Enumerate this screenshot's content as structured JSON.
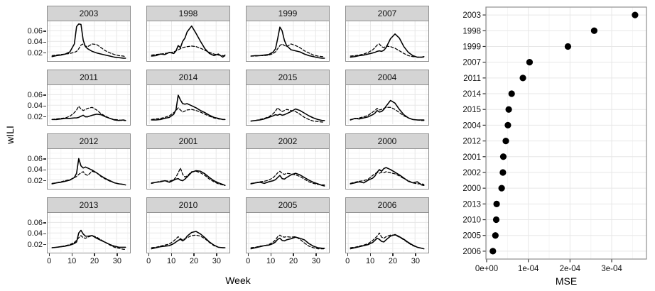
{
  "figure": {
    "left": {
      "ylabel": "wILI",
      "xlabel": "Week",
      "y_tick_labels": [
        "0.06",
        "0.04",
        "0.02"
      ],
      "x_tick_labels": [
        "0",
        "10",
        "20",
        "30"
      ]
    },
    "right": {
      "xlabel": "MSE",
      "x_tick_labels": [
        "0e+00",
        "1e-04",
        "2e-04",
        "3e-04"
      ]
    }
  },
  "colors": {
    "line": "#000000",
    "point": "#000000",
    "text": "#111111",
    "strip_fill": "#d4d4d4",
    "strip_border": "#8f8f8f",
    "panel_border": "#8f8f8f",
    "grid_major": "#e7e7e7",
    "grid_minor": "#f4f4f4"
  },
  "chart_data": [
    {
      "type": "line",
      "title": "",
      "xlabel": "Week",
      "ylabel": "wILI",
      "facet_variable": "year",
      "grid": true,
      "xlim": [
        -1,
        36
      ],
      "ylim": [
        0.004,
        0.078
      ],
      "x_ticks": [
        0,
        10,
        20,
        30
      ],
      "x_minor": [
        5,
        15,
        25,
        35
      ],
      "y_ticks": [
        0.02,
        0.04,
        0.06
      ],
      "y_minor": [
        0.01,
        0.03,
        0.05,
        0.07
      ],
      "x": [
        1,
        3,
        5,
        7,
        9,
        11,
        12,
        13,
        14,
        15,
        16,
        17,
        19,
        21,
        23,
        25,
        27,
        29,
        31,
        33,
        34
      ],
      "series_names": [
        "solid",
        "dashed"
      ],
      "facets": [
        {
          "label": "2003",
          "solid": [
            0.011,
            0.013,
            0.014,
            0.016,
            0.02,
            0.035,
            0.068,
            0.073,
            0.072,
            0.042,
            0.03,
            0.026,
            0.021,
            0.018,
            0.016,
            0.014,
            0.012,
            0.01,
            0.009,
            0.008,
            0.008
          ],
          "dashed": [
            0.013,
            0.014,
            0.015,
            0.016,
            0.017,
            0.019,
            0.021,
            0.026,
            0.033,
            0.035,
            0.031,
            0.03,
            0.035,
            0.034,
            0.028,
            0.022,
            0.018,
            0.015,
            0.013,
            0.012,
            0.011
          ]
        },
        {
          "label": "1998",
          "solid": [
            0.012,
            0.013,
            0.016,
            0.015,
            0.019,
            0.017,
            0.022,
            0.032,
            0.028,
            0.04,
            0.046,
            0.058,
            0.069,
            0.055,
            0.04,
            0.026,
            0.017,
            0.013,
            0.016,
            0.01,
            0.014
          ],
          "dashed": [
            0.014,
            0.015,
            0.016,
            0.017,
            0.018,
            0.02,
            0.022,
            0.024,
            0.026,
            0.028,
            0.029,
            0.03,
            0.031,
            0.03,
            0.027,
            0.023,
            0.019,
            0.016,
            0.014,
            0.013,
            0.012
          ]
        },
        {
          "label": "1999",
          "solid": [
            0.012,
            0.013,
            0.013,
            0.014,
            0.015,
            0.02,
            0.026,
            0.045,
            0.067,
            0.06,
            0.042,
            0.032,
            0.024,
            0.022,
            0.02,
            0.016,
            0.013,
            0.011,
            0.009,
            0.008,
            0.008
          ],
          "dashed": [
            0.012,
            0.012,
            0.013,
            0.013,
            0.014,
            0.017,
            0.02,
            0.026,
            0.032,
            0.035,
            0.032,
            0.03,
            0.035,
            0.032,
            0.028,
            0.022,
            0.018,
            0.014,
            0.012,
            0.011,
            0.011
          ]
        },
        {
          "label": "2007",
          "solid": [
            0.01,
            0.011,
            0.013,
            0.014,
            0.016,
            0.018,
            0.019,
            0.021,
            0.022,
            0.021,
            0.023,
            0.028,
            0.045,
            0.054,
            0.046,
            0.03,
            0.019,
            0.013,
            0.01,
            0.01,
            0.011
          ],
          "dashed": [
            0.012,
            0.013,
            0.014,
            0.016,
            0.019,
            0.024,
            0.028,
            0.033,
            0.035,
            0.03,
            0.028,
            0.031,
            0.03,
            0.027,
            0.022,
            0.017,
            0.013,
            0.011,
            0.01,
            0.01,
            0.01
          ]
        },
        {
          "label": "2011",
          "solid": [
            0.013,
            0.013,
            0.014,
            0.015,
            0.015,
            0.016,
            0.016,
            0.017,
            0.019,
            0.021,
            0.018,
            0.018,
            0.021,
            0.023,
            0.022,
            0.018,
            0.015,
            0.012,
            0.011,
            0.012,
            0.011
          ],
          "dashed": [
            0.013,
            0.014,
            0.015,
            0.016,
            0.019,
            0.026,
            0.031,
            0.038,
            0.033,
            0.03,
            0.032,
            0.034,
            0.036,
            0.031,
            0.024,
            0.019,
            0.015,
            0.013,
            0.012,
            0.011,
            0.011
          ]
        },
        {
          "label": "2014",
          "solid": [
            0.012,
            0.012,
            0.013,
            0.015,
            0.017,
            0.023,
            0.032,
            0.059,
            0.05,
            0.043,
            0.042,
            0.043,
            0.039,
            0.035,
            0.03,
            0.026,
            0.021,
            0.017,
            0.015,
            0.013,
            0.013
          ],
          "dashed": [
            0.013,
            0.014,
            0.015,
            0.017,
            0.02,
            0.026,
            0.03,
            0.035,
            0.031,
            0.027,
            0.029,
            0.031,
            0.032,
            0.03,
            0.027,
            0.023,
            0.019,
            0.016,
            0.014,
            0.013,
            0.013
          ]
        },
        {
          "label": "2015",
          "solid": [
            0.01,
            0.011,
            0.012,
            0.014,
            0.017,
            0.02,
            0.022,
            0.021,
            0.023,
            0.021,
            0.022,
            0.024,
            0.028,
            0.033,
            0.03,
            0.025,
            0.02,
            0.016,
            0.013,
            0.011,
            0.011
          ],
          "dashed": [
            0.01,
            0.011,
            0.013,
            0.015,
            0.018,
            0.024,
            0.029,
            0.035,
            0.031,
            0.028,
            0.03,
            0.032,
            0.03,
            0.028,
            0.023,
            0.017,
            0.013,
            0.01,
            0.009,
            0.008,
            0.008
          ]
        },
        {
          "label": "2004",
          "solid": [
            0.012,
            0.015,
            0.014,
            0.016,
            0.018,
            0.022,
            0.025,
            0.03,
            0.027,
            0.028,
            0.032,
            0.038,
            0.049,
            0.044,
            0.032,
            0.022,
            0.016,
            0.013,
            0.012,
            0.012,
            0.012
          ],
          "dashed": [
            0.013,
            0.014,
            0.016,
            0.018,
            0.021,
            0.027,
            0.03,
            0.034,
            0.031,
            0.032,
            0.034,
            0.036,
            0.036,
            0.032,
            0.026,
            0.02,
            0.016,
            0.013,
            0.012,
            0.011,
            0.011
          ]
        },
        {
          "label": "2012",
          "solid": [
            0.012,
            0.014,
            0.015,
            0.017,
            0.019,
            0.024,
            0.032,
            0.06,
            0.046,
            0.042,
            0.044,
            0.042,
            0.038,
            0.033,
            0.027,
            0.022,
            0.018,
            0.014,
            0.012,
            0.011,
            0.01
          ],
          "dashed": [
            0.013,
            0.014,
            0.016,
            0.018,
            0.02,
            0.024,
            0.026,
            0.03,
            0.033,
            0.035,
            0.03,
            0.028,
            0.036,
            0.033,
            0.026,
            0.021,
            0.017,
            0.014,
            0.012,
            0.011,
            0.01
          ]
        },
        {
          "label": "2001",
          "solid": [
            0.013,
            0.015,
            0.016,
            0.018,
            0.015,
            0.019,
            0.021,
            0.022,
            0.019,
            0.018,
            0.021,
            0.025,
            0.034,
            0.037,
            0.036,
            0.031,
            0.024,
            0.018,
            0.014,
            0.011,
            0.009
          ],
          "dashed": [
            0.014,
            0.015,
            0.017,
            0.018,
            0.017,
            0.02,
            0.025,
            0.033,
            0.042,
            0.03,
            0.025,
            0.027,
            0.035,
            0.036,
            0.033,
            0.028,
            0.021,
            0.016,
            0.012,
            0.01,
            0.009
          ]
        },
        {
          "label": "2002",
          "solid": [
            0.012,
            0.014,
            0.015,
            0.013,
            0.016,
            0.018,
            0.02,
            0.024,
            0.028,
            0.022,
            0.021,
            0.024,
            0.029,
            0.032,
            0.029,
            0.024,
            0.019,
            0.015,
            0.012,
            0.009,
            0.008
          ],
          "dashed": [
            0.013,
            0.014,
            0.016,
            0.017,
            0.019,
            0.024,
            0.028,
            0.033,
            0.036,
            0.032,
            0.03,
            0.032,
            0.031,
            0.029,
            0.026,
            0.021,
            0.016,
            0.013,
            0.011,
            0.01,
            0.01
          ]
        },
        {
          "label": "2000",
          "solid": [
            0.012,
            0.014,
            0.016,
            0.014,
            0.019,
            0.023,
            0.027,
            0.034,
            0.039,
            0.036,
            0.041,
            0.043,
            0.039,
            0.034,
            0.029,
            0.023,
            0.017,
            0.014,
            0.016,
            0.01,
            0.009
          ],
          "dashed": [
            0.013,
            0.015,
            0.017,
            0.018,
            0.021,
            0.028,
            0.031,
            0.034,
            0.032,
            0.034,
            0.033,
            0.035,
            0.033,
            0.031,
            0.027,
            0.022,
            0.018,
            0.014,
            0.012,
            0.012,
            0.011
          ]
        },
        {
          "label": "2013",
          "solid": [
            0.012,
            0.013,
            0.014,
            0.015,
            0.017,
            0.02,
            0.023,
            0.04,
            0.045,
            0.038,
            0.034,
            0.034,
            0.035,
            0.03,
            0.026,
            0.022,
            0.018,
            0.015,
            0.013,
            0.013,
            0.013
          ],
          "dashed": [
            0.012,
            0.013,
            0.014,
            0.016,
            0.018,
            0.022,
            0.026,
            0.031,
            0.035,
            0.031,
            0.03,
            0.032,
            0.035,
            0.032,
            0.027,
            0.022,
            0.017,
            0.013,
            0.011,
            0.009,
            0.009
          ]
        },
        {
          "label": "2010",
          "solid": [
            0.01,
            0.012,
            0.014,
            0.015,
            0.016,
            0.02,
            0.023,
            0.026,
            0.028,
            0.025,
            0.028,
            0.034,
            0.041,
            0.043,
            0.038,
            0.031,
            0.023,
            0.017,
            0.013,
            0.012,
            0.012
          ],
          "dashed": [
            0.012,
            0.013,
            0.015,
            0.017,
            0.019,
            0.025,
            0.029,
            0.033,
            0.029,
            0.027,
            0.029,
            0.031,
            0.035,
            0.036,
            0.034,
            0.029,
            0.022,
            0.016,
            0.013,
            0.012,
            0.012
          ]
        },
        {
          "label": "2005",
          "solid": [
            0.01,
            0.012,
            0.014,
            0.016,
            0.017,
            0.02,
            0.023,
            0.028,
            0.03,
            0.026,
            0.025,
            0.027,
            0.029,
            0.032,
            0.03,
            0.027,
            0.02,
            0.015,
            0.012,
            0.011,
            0.011
          ],
          "dashed": [
            0.012,
            0.013,
            0.015,
            0.016,
            0.018,
            0.023,
            0.027,
            0.033,
            0.036,
            0.033,
            0.032,
            0.033,
            0.032,
            0.033,
            0.028,
            0.021,
            0.015,
            0.012,
            0.01,
            0.01,
            0.01
          ]
        },
        {
          "label": "2006",
          "solid": [
            0.01,
            0.012,
            0.014,
            0.016,
            0.018,
            0.022,
            0.026,
            0.03,
            0.028,
            0.024,
            0.023,
            0.027,
            0.034,
            0.037,
            0.033,
            0.028,
            0.022,
            0.017,
            0.013,
            0.011,
            0.01
          ],
          "dashed": [
            0.012,
            0.013,
            0.015,
            0.017,
            0.02,
            0.026,
            0.03,
            0.034,
            0.04,
            0.032,
            0.03,
            0.033,
            0.036,
            0.036,
            0.032,
            0.027,
            0.021,
            0.016,
            0.013,
            0.011,
            0.01
          ]
        }
      ]
    },
    {
      "type": "scatter",
      "title": "",
      "xlabel": "MSE",
      "ylabel": "",
      "grid": true,
      "xlim": [
        0,
        0.00038
      ],
      "x_ticks": [
        0,
        0.0001,
        0.0002,
        0.0003
      ],
      "x_minor": [
        5e-05,
        0.00015,
        0.00025,
        0.00035
      ],
      "x_tick_labels": [
        "0e+00",
        "1e-04",
        "2e-04",
        "3e-04"
      ],
      "categories": [
        "2003",
        "1998",
        "1999",
        "2007",
        "2011",
        "2014",
        "2015",
        "2004",
        "2012",
        "2001",
        "2002",
        "2000",
        "2013",
        "2010",
        "2005",
        "2006"
      ],
      "values": [
        0.000356,
        0.000258,
        0.000195,
        0.000103,
        8.7e-05,
        6e-05,
        5.3e-05,
        5.1e-05,
        4.6e-05,
        4e-05,
        3.9e-05,
        3.6e-05,
        2.4e-05,
        2.3e-05,
        2.1e-05,
        1.5e-05
      ]
    }
  ]
}
